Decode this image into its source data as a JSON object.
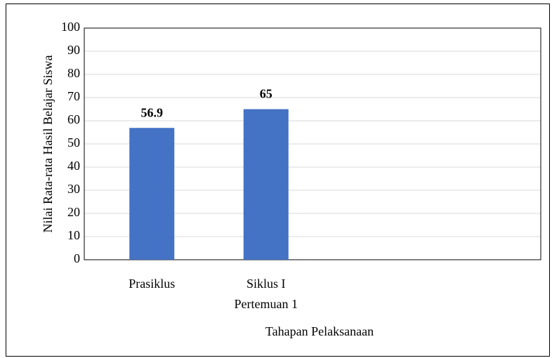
{
  "chart_data": {
    "type": "bar",
    "x_label": "Tahapan Pelaksanaan",
    "y_label": "Nilai Rata-rata Hasil Belajar Siswa",
    "categories": [
      "Prasiklus",
      "Siklus I\nPertemuan 1",
      null,
      null
    ],
    "values": [
      56.9,
      65,
      null,
      null
    ],
    "color": "#4472c4",
    "ylim": [
      0,
      100
    ],
    "yticks": [
      0,
      10,
      20,
      30,
      40,
      50,
      60,
      70,
      80,
      90,
      100
    ],
    "grid": true
  }
}
